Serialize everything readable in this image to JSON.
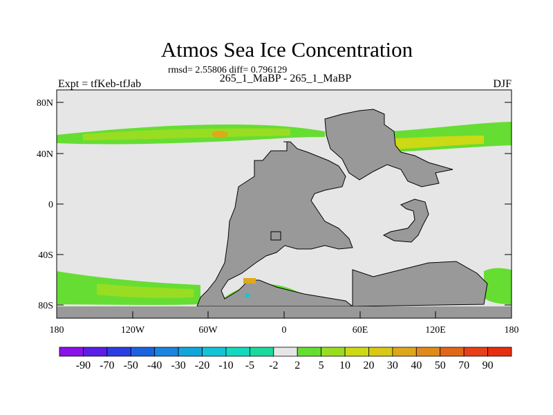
{
  "title": "Atmos Sea Ice Concentration",
  "stats": "rmsd= 2.55806 diff= 0.796129",
  "subtitle": "265_1_MaBP - 265_1_MaBP",
  "expt": "Expt = tfKeb-tfJab",
  "season": "DJF",
  "map": {
    "lat_labels": [
      "80N",
      "40N",
      "0",
      "40S",
      "80S"
    ],
    "lon_labels": [
      "180",
      "120W",
      "60W",
      "0",
      "60E",
      "120E",
      "180"
    ],
    "colors": {
      "background": "#e6e6e6",
      "land": "#999999",
      "ice_green": "#66dd33",
      "ice_lime": "#99dd22",
      "ice_yellow": "#ccd914",
      "ice_orange": "#e0a81a"
    }
  },
  "colorbar": {
    "labels": [
      "-90",
      "-70",
      "-50",
      "-40",
      "-30",
      "-20",
      "-10",
      "-5",
      "-2",
      "2",
      "5",
      "10",
      "20",
      "30",
      "40",
      "50",
      "70",
      "90"
    ],
    "colors": [
      "#8a12e6",
      "#5a1ee6",
      "#2c3ee3",
      "#1a62e0",
      "#1a84e0",
      "#12a5dc",
      "#12c5d6",
      "#12d9c0",
      "#1ad99c",
      "#e6e6e6",
      "#66dd33",
      "#99dd22",
      "#ccd914",
      "#d9c814",
      "#dca71a",
      "#e08a1a",
      "#e0661a",
      "#e6401a",
      "#e62e12"
    ]
  }
}
